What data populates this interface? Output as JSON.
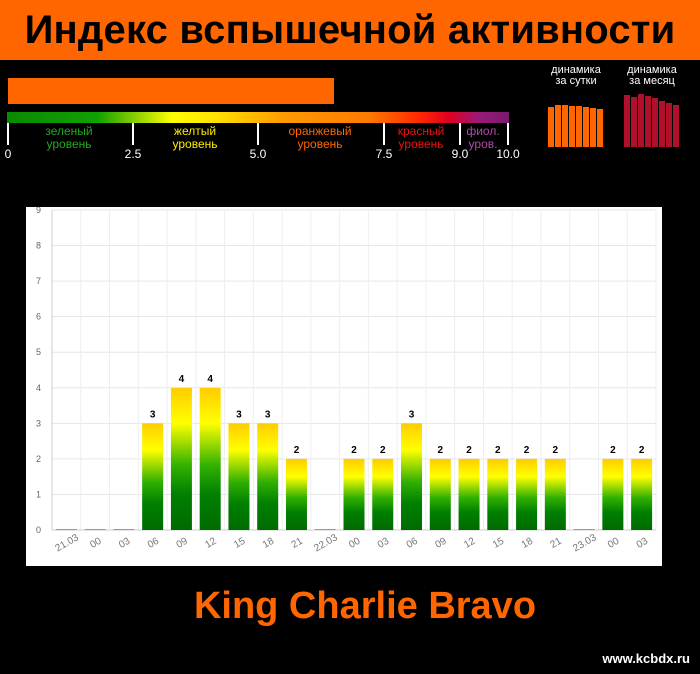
{
  "header": {
    "title": "Индекс вспышечной активности"
  },
  "current_level": 6.5,
  "scale": {
    "ticks": [
      "0",
      "2.5",
      "5.0",
      "7.5",
      "9.0",
      "10.0"
    ],
    "levels": [
      {
        "line1": "зеленый",
        "line2": "уровень",
        "color": "#22aa22"
      },
      {
        "line1": "желтый",
        "line2": "уровень",
        "color": "#ffee00"
      },
      {
        "line1": "оранжевый",
        "line2": "уровень",
        "color": "#ff6600"
      },
      {
        "line1": "красный",
        "line2": "уровень",
        "color": "#ee1111"
      },
      {
        "line1": "фиол.",
        "line2": "уров.",
        "color": "#b04aa8"
      }
    ]
  },
  "dynamics": {
    "day_label_1": "динамика",
    "day_label_2": "за сутки",
    "month_label_1": "динамика",
    "month_label_2": "за месяц",
    "day_color": "#ff6600",
    "month_color": "#b0102a"
  },
  "chart_data": {
    "type": "bar",
    "categories": [
      "21.03",
      "00",
      "03",
      "06",
      "09",
      "12",
      "15",
      "18",
      "21",
      "22.03",
      "00",
      "03",
      "06",
      "09",
      "12",
      "15",
      "18",
      "21",
      "23.03",
      "00",
      "03"
    ],
    "values": [
      0,
      0,
      0,
      3,
      4,
      4,
      3,
      3,
      2,
      0,
      2,
      2,
      3,
      2,
      2,
      2,
      2,
      2,
      0,
      2,
      2
    ],
    "ylim": [
      0,
      9
    ],
    "yticks": [
      "0",
      "1",
      "2",
      "3",
      "4",
      "5",
      "6",
      "7",
      "8",
      "9"
    ],
    "grid": true
  },
  "footer": {
    "title": "King Charlie Bravo",
    "site": "www.kcbdx.ru"
  }
}
